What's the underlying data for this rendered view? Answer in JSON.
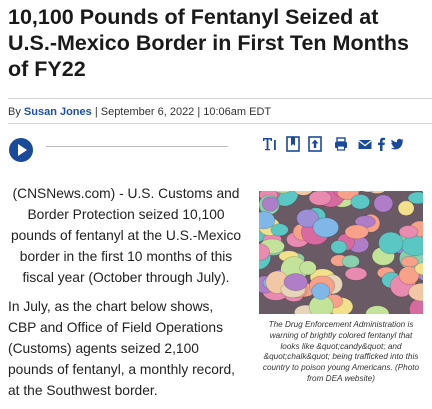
{
  "article": {
    "title": "10,100 Pounds of Fentanyl Seized at U.S.-Mexico Border in First Ten Months of FY22",
    "byline_prefix": "By ",
    "author": "Susan Jones",
    "byline_rest": " | September 6, 2022 | 10:06am EDT",
    "paragraphs": [
      "(CNSNews.com) - U.S. Customs and Border Protection seized 10,100 pounds of fentanyl at the U.S.-Mexico border in the first 10 months of this fiscal year (October through July).",
      "In July, as the chart below shows, CBP and Office of Field Operations (Customs) agents seized 2,100 pounds of fentanyl, a monthly record, at the Southwest border."
    ],
    "image_caption": "The Drug Enforcement Administration is warning of brightly colored fentanyl that looks like &quot;candy&quot; and &quot;chalk&quot; being trafficked into this country to poison young Americans. (Photo from DEA website)"
  },
  "toolbar": {
    "icons": [
      "text-size-icon",
      "bookmark-icon",
      "share-icon",
      "print-icon",
      "email-icon",
      "facebook-icon",
      "twitter-icon"
    ]
  },
  "audio_player": {
    "icon": "play-icon",
    "accent": "#1b4a9a"
  },
  "colors": {
    "accent": "#1b4a9a",
    "link": "#1f4fa8"
  }
}
